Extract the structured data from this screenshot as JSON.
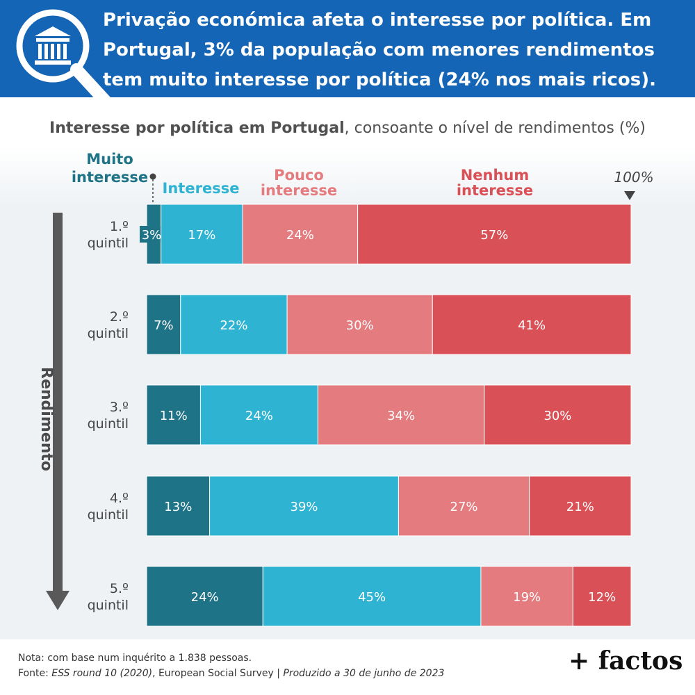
{
  "header": {
    "title": "Privação económica afeta o interesse por política. Em Portugal, 3% da população com menores rendimentos tem muito interesse por política (24% nos mais ricos)."
  },
  "subtitle": {
    "bold": "Interesse por política em Portugal",
    "rest": ", consoante o nível de rendimentos (%)"
  },
  "colors": {
    "header_bg": "#1565b6",
    "muito_interesse": "#1e7386",
    "interesse": "#2eb3d2",
    "pouco_interesse": "#e47b7e",
    "nenhum_interesse": "#d95056",
    "axis_arrow": "#595959"
  },
  "axis": {
    "label": "Rendimento",
    "hundred_marker": "100%"
  },
  "icons": {
    "logo": "institution-magnifier-icon"
  },
  "chart_data": {
    "type": "bar",
    "orientation": "horizontal",
    "stacked": true,
    "categories": [
      "1.º quintil",
      "2.º quintil",
      "3.º quintil",
      "4.º quintil",
      "5.º quintil"
    ],
    "series": [
      {
        "name": "Muito interesse",
        "values": [
          3,
          7,
          11,
          13,
          24
        ]
      },
      {
        "name": "Interesse",
        "values": [
          17,
          22,
          24,
          39,
          45
        ]
      },
      {
        "name": "Pouco interesse",
        "values": [
          24,
          30,
          34,
          27,
          19
        ]
      },
      {
        "name": "Nenhum interesse",
        "values": [
          57,
          41,
          30,
          21,
          12
        ]
      }
    ],
    "xlim": [
      0,
      100
    ],
    "legend_position": "top",
    "data_labels_suffix": "%"
  },
  "footer": {
    "note": "Nota: com base num inquérito a 1.838 pessoas.",
    "source_prefix": "Fonte: ",
    "source_italic": "ESS round 10 (2020)",
    "source_middle": ", European Social Survey | ",
    "produced_italic": "Produzido a 30 de junho de 2023",
    "brand": "+ factos"
  }
}
